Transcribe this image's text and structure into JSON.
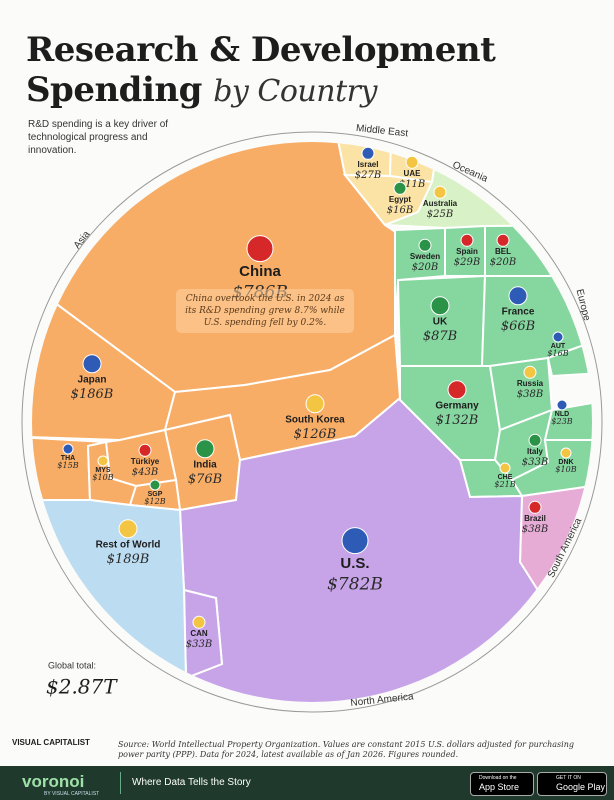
{
  "header": {
    "title_line1": "Research & Development",
    "title_line2": "Spending",
    "title_italic": "by Country",
    "subtitle": "R&D spending is a key driver of technological progress and innovation."
  },
  "chart_data": {
    "type": "voronoi",
    "series": [
      {
        "name": "Asia",
        "color": "#f8ad66",
        "categories": [
          "China",
          "Japan",
          "South Korea",
          "India",
          "Türkiye",
          "THA",
          "MYS",
          "SGP"
        ],
        "values": [
          786,
          186,
          126,
          76,
          43,
          15,
          10,
          12
        ],
        "value_labels": [
          "$786B",
          "$186B",
          "$126B",
          "$76B",
          "$43B",
          "$15B",
          "$10B",
          "$12B"
        ]
      },
      {
        "name": "Middle East",
        "color": "#fbe3a6",
        "categories": [
          "Israel",
          "UAE",
          "Egypt"
        ],
        "values": [
          27,
          11,
          16
        ],
        "value_labels": [
          "$27B",
          "$11B",
          "$16B"
        ]
      },
      {
        "name": "Oceania",
        "color": "#d9f1c6",
        "categories": [
          "Australia"
        ],
        "values": [
          25
        ],
        "value_labels": [
          "$25B"
        ]
      },
      {
        "name": "Europe",
        "color": "#86d6a0",
        "categories": [
          "UK",
          "Germany",
          "France",
          "Russia",
          "Italy",
          "Spain",
          "NLD",
          "CHE",
          "Sweden",
          "BEL",
          "AUT",
          "DNK"
        ],
        "values": [
          87,
          132,
          66,
          38,
          33,
          29,
          23,
          21,
          20,
          20,
          16,
          10
        ],
        "value_labels": [
          "$87B",
          "$132B",
          "$66B",
          "$38B",
          "$33B",
          "$29B",
          "$23B",
          "$21B",
          "$20B",
          "$20B",
          "$16B",
          "$10B"
        ]
      },
      {
        "name": "South America",
        "color": "#e6acd6",
        "categories": [
          "Brazil"
        ],
        "values": [
          38
        ],
        "value_labels": [
          "$38B"
        ]
      },
      {
        "name": "North America",
        "color": "#c7a4e8",
        "categories": [
          "U.S.",
          "CAN"
        ],
        "values": [
          782,
          33
        ],
        "value_labels": [
          "$782B",
          "$33B"
        ]
      },
      {
        "color": "#bcdcf1",
        "categories": [
          "Rest of World"
        ],
        "values": [
          189
        ],
        "value_labels": [
          "$189B"
        ]
      }
    ],
    "annotation": "China overtook the U.S. in 2024 as its R&D spending grew 8.7% while U.S. spending fell by 0.2%.",
    "total_title": "Global total:",
    "total": 2870,
    "total_label": "$2.87T"
  },
  "source": "Source: World Intellectual Property Organization. Values are constant 2015 U.S. dollars adjusted for purchasing power parity (PPP). Data for 2024, latest available as of Jan 2026. Figures rounded.",
  "logo": "VISUAL CAPITALIST",
  "footer": {
    "brand": "voronoi",
    "brand_sub": "BY VISUAL CAPITALIST",
    "tagline": "Where Data Tells the Story",
    "app_store_small": "Download on the",
    "app_store": "App Store",
    "play_small": "GET IT ON",
    "play": "Google Play"
  }
}
